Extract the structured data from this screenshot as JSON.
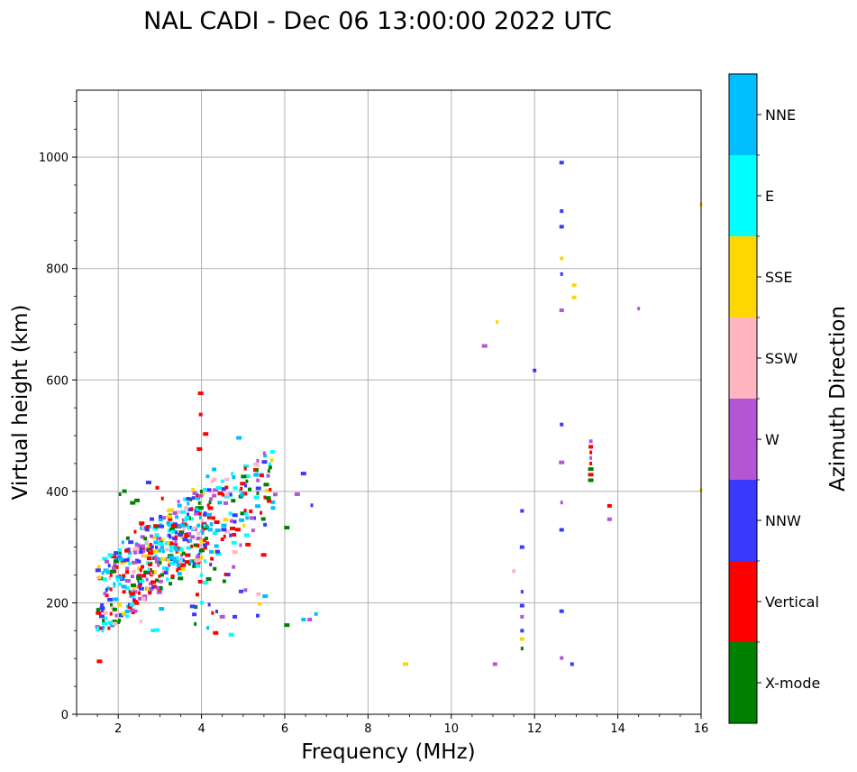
{
  "chart_data": {
    "type": "scatter",
    "title": "NAL CADI - Dec 06 13:00:00 2022 UTC",
    "xlabel": "Frequency (MHz)",
    "ylabel": "Virtual height (km)",
    "xlim": [
      1,
      16
    ],
    "ylim": [
      0,
      1120
    ],
    "xticks": [
      2,
      4,
      6,
      8,
      10,
      12,
      14,
      16
    ],
    "yticks": [
      0,
      200,
      400,
      600,
      800,
      1000
    ],
    "grid": true,
    "colorbar": {
      "label": "Azimuth Direction",
      "categories": [
        {
          "name": "X-mode",
          "color": "#008000"
        },
        {
          "name": "Vertical",
          "color": "#ff0000"
        },
        {
          "name": "NNW",
          "color": "#3a3aff"
        },
        {
          "name": "W",
          "color": "#b455d6"
        },
        {
          "name": "SSW",
          "color": "#ffb6c1"
        },
        {
          "name": "SSE",
          "color": "#ffd700"
        },
        {
          "name": "E",
          "color": "#00ffff"
        },
        {
          "name": "NNE",
          "color": "#00bfff"
        }
      ]
    },
    "points": [
      {
        "f": 1.55,
        "h": 95,
        "d": "Vertical"
      },
      {
        "f": 3.98,
        "h": 576,
        "d": "Vertical"
      },
      {
        "f": 3.98,
        "h": 538,
        "d": "Vertical"
      },
      {
        "f": 4.1,
        "h": 503,
        "d": "Vertical"
      },
      {
        "f": 3.95,
        "h": 476,
        "d": "Vertical"
      },
      {
        "f": 4.9,
        "h": 496,
        "d": "NNE"
      },
      {
        "f": 5.35,
        "h": 455,
        "d": "W"
      },
      {
        "f": 5.32,
        "h": 430,
        "d": "NNE"
      },
      {
        "f": 5.6,
        "h": 428,
        "d": "W"
      },
      {
        "f": 6.45,
        "h": 432,
        "d": "NNW"
      },
      {
        "f": 6.3,
        "h": 395,
        "d": "W"
      },
      {
        "f": 6.65,
        "h": 375,
        "d": "NNW"
      },
      {
        "f": 6.05,
        "h": 335,
        "d": "X-mode"
      },
      {
        "f": 6.45,
        "h": 170,
        "d": "NNE"
      },
      {
        "f": 6.75,
        "h": 180,
        "d": "NNE"
      },
      {
        "f": 6.6,
        "h": 170,
        "d": "W"
      },
      {
        "f": 6.05,
        "h": 160,
        "d": "X-mode"
      },
      {
        "f": 5.35,
        "h": 177,
        "d": "NNW"
      },
      {
        "f": 4.15,
        "h": 155,
        "d": "NNE"
      },
      {
        "f": 3.85,
        "h": 162,
        "d": "X-mode"
      },
      {
        "f": 4.5,
        "h": 175,
        "d": "W"
      },
      {
        "f": 4.8,
        "h": 175,
        "d": "NNW"
      },
      {
        "f": 8.9,
        "h": 90,
        "d": "SSE"
      },
      {
        "f": 10.8,
        "h": 661,
        "d": "W"
      },
      {
        "f": 11.1,
        "h": 704,
        "d": "SSE"
      },
      {
        "f": 11.05,
        "h": 90,
        "d": "W"
      },
      {
        "f": 11.5,
        "h": 257,
        "d": "SSW"
      },
      {
        "f": 11.7,
        "h": 365,
        "d": "NNW"
      },
      {
        "f": 11.7,
        "h": 300,
        "d": "NNW"
      },
      {
        "f": 11.7,
        "h": 220,
        "d": "NNW"
      },
      {
        "f": 11.7,
        "h": 195,
        "d": "NNW"
      },
      {
        "f": 11.7,
        "h": 175,
        "d": "W"
      },
      {
        "f": 11.7,
        "h": 150,
        "d": "NNW"
      },
      {
        "f": 11.7,
        "h": 135,
        "d": "SSE"
      },
      {
        "f": 11.7,
        "h": 118,
        "d": "X-mode"
      },
      {
        "f": 12.0,
        "h": 617,
        "d": "NNW"
      },
      {
        "f": 12.65,
        "h": 990,
        "d": "NNW"
      },
      {
        "f": 12.65,
        "h": 903,
        "d": "NNW"
      },
      {
        "f": 12.65,
        "h": 875,
        "d": "NNW"
      },
      {
        "f": 12.65,
        "h": 818,
        "d": "SSE"
      },
      {
        "f": 12.65,
        "h": 790,
        "d": "NNW"
      },
      {
        "f": 12.65,
        "h": 725,
        "d": "W"
      },
      {
        "f": 12.65,
        "h": 520,
        "d": "NNW"
      },
      {
        "f": 12.65,
        "h": 452,
        "d": "W"
      },
      {
        "f": 12.65,
        "h": 380,
        "d": "W"
      },
      {
        "f": 12.65,
        "h": 331,
        "d": "NNW"
      },
      {
        "f": 12.65,
        "h": 185,
        "d": "NNW"
      },
      {
        "f": 12.65,
        "h": 101,
        "d": "W"
      },
      {
        "f": 12.9,
        "h": 90,
        "d": "NNW"
      },
      {
        "f": 12.95,
        "h": 770,
        "d": "SSE"
      },
      {
        "f": 12.95,
        "h": 748,
        "d": "SSE"
      },
      {
        "f": 13.35,
        "h": 490,
        "d": "W"
      },
      {
        "f": 13.35,
        "h": 480,
        "d": "Vertical"
      },
      {
        "f": 13.35,
        "h": 470,
        "d": "Vertical"
      },
      {
        "f": 13.35,
        "h": 460,
        "d": "W"
      },
      {
        "f": 13.35,
        "h": 450,
        "d": "Vertical"
      },
      {
        "f": 13.35,
        "h": 440,
        "d": "X-mode"
      },
      {
        "f": 13.35,
        "h": 430,
        "d": "Vertical"
      },
      {
        "f": 13.35,
        "h": 420,
        "d": "X-mode"
      },
      {
        "f": 13.8,
        "h": 374,
        "d": "Vertical"
      },
      {
        "f": 13.8,
        "h": 350,
        "d": "W"
      },
      {
        "f": 14.5,
        "h": 728,
        "d": "W"
      },
      {
        "f": 16.0,
        "h": 915,
        "d": "SSE"
      },
      {
        "f": 16.0,
        "h": 402,
        "d": "SSE"
      }
    ]
  }
}
